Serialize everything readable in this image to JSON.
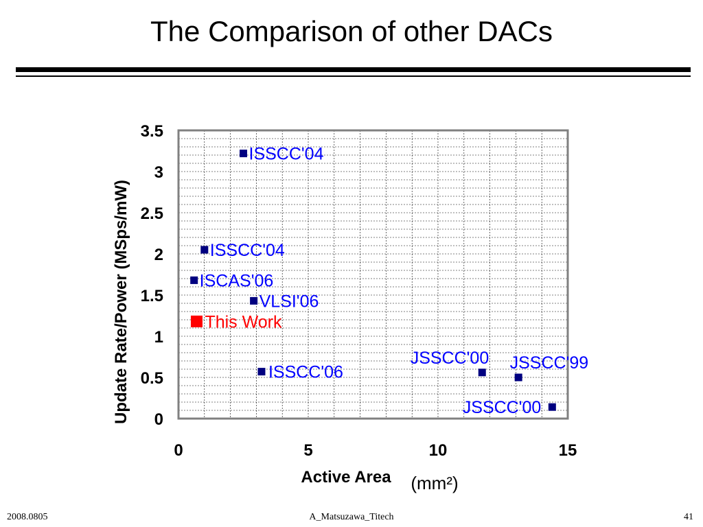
{
  "slide": {
    "title": "The Comparison of other DACs"
  },
  "footer": {
    "date": "2008.0805",
    "author": "A_Matsuzawa_Titech",
    "page_number": "41"
  },
  "colors": {
    "series_blue": "#000080",
    "label_blue": "#0000ff",
    "highlight_red": "#ff0000",
    "grid": "#000000",
    "axis_frame": "#808080"
  },
  "chart_data": {
    "type": "scatter",
    "xlabel": "Active Area",
    "xlabel_unit": "(mm²)",
    "ylabel": "Update Rate/Power (MSps/mW)",
    "xlim": [
      0,
      15
    ],
    "ylim": [
      0,
      3.5
    ],
    "x_ticks": [
      "0",
      "5",
      "10",
      "15"
    ],
    "y_ticks": [
      "0",
      "0.5",
      "1",
      "1.5",
      "2",
      "2.5",
      "3",
      "3.5"
    ],
    "grid": true,
    "legend": "none",
    "points": [
      {
        "label": "ISSCC'04",
        "x": 2.5,
        "y": 3.22,
        "highlight": false
      },
      {
        "label": "ISSCC'04",
        "x": 1.0,
        "y": 2.05,
        "highlight": false
      },
      {
        "label": "ISCAS'06",
        "x": 0.6,
        "y": 1.68,
        "highlight": false
      },
      {
        "label": "VLSI'06",
        "x": 2.9,
        "y": 1.43,
        "highlight": false
      },
      {
        "label": "This Work",
        "x": 0.7,
        "y": 1.18,
        "highlight": true
      },
      {
        "label": "ISSCC'06",
        "x": 3.2,
        "y": 0.57,
        "highlight": false
      },
      {
        "label": "JSSCC'00",
        "x": 11.7,
        "y": 0.56,
        "highlight": false
      },
      {
        "label": "JSSCC'99",
        "x": 13.1,
        "y": 0.5,
        "highlight": false
      },
      {
        "label": "JSSCC'00",
        "x": 14.4,
        "y": 0.14,
        "highlight": false
      }
    ]
  }
}
